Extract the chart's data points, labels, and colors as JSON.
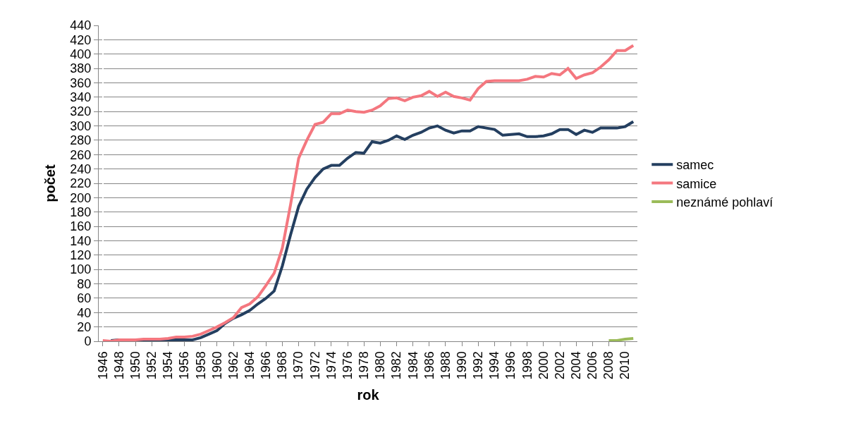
{
  "chart_data": {
    "type": "line",
    "xlabel": "rok",
    "ylabel": "počet",
    "categories": [
      "1946",
      null,
      "1948",
      null,
      "1950",
      null,
      "1952",
      null,
      "1954",
      null,
      "1956",
      null,
      "1958",
      null,
      "1960",
      null,
      "1962",
      null,
      "1964",
      null,
      "1966",
      null,
      "1968",
      null,
      "1970",
      null,
      "1972",
      null,
      "1974",
      null,
      "1976",
      null,
      "1978",
      null,
      "1980",
      null,
      "1982",
      null,
      "1984",
      null,
      "1986",
      null,
      "1988",
      null,
      "1990",
      null,
      "1992",
      null,
      "1994",
      null,
      "1996",
      null,
      "1998",
      null,
      "2000",
      null,
      "2002",
      null,
      "2004",
      null,
      "2006",
      null,
      "2008",
      null,
      "2010",
      null
    ],
    "series": [
      {
        "name": "samec",
        "color": "#243f60",
        "values": [
          null,
          1,
          2,
          2,
          2,
          2,
          2,
          2,
          2,
          2,
          2,
          2,
          5,
          10,
          15,
          25,
          32,
          37,
          43,
          52,
          60,
          70,
          105,
          148,
          188,
          212,
          228,
          240,
          245,
          245,
          255,
          263,
          262,
          278,
          276,
          280,
          286,
          281,
          287,
          291,
          297,
          300,
          294,
          290,
          293,
          293,
          299,
          297,
          295,
          287,
          288,
          289,
          285,
          285,
          286,
          289,
          295,
          295,
          288,
          294,
          291,
          297,
          297,
          297,
          299,
          306
        ]
      },
      {
        "name": "samice",
        "color": "#f4777f",
        "values": [
          1,
          0,
          2,
          2,
          2,
          3,
          3,
          3,
          4,
          6,
          6,
          7,
          10,
          15,
          20,
          26,
          33,
          47,
          52,
          62,
          78,
          95,
          130,
          190,
          255,
          280,
          302,
          305,
          317,
          317,
          322,
          320,
          319,
          322,
          328,
          338,
          339,
          335,
          340,
          342,
          348,
          341,
          347,
          341,
          339,
          336,
          352,
          362,
          363,
          363,
          363,
          363,
          365,
          369,
          368,
          373,
          371,
          380,
          366,
          371,
          374,
          382,
          392,
          405,
          405,
          412
        ]
      },
      {
        "name": "neznámé pohlaví",
        "color": "#9bbb59",
        "values": [
          null,
          null,
          null,
          null,
          null,
          null,
          null,
          null,
          null,
          null,
          null,
          null,
          null,
          null,
          null,
          null,
          null,
          null,
          null,
          null,
          null,
          null,
          null,
          null,
          null,
          null,
          null,
          null,
          null,
          null,
          null,
          null,
          null,
          null,
          null,
          null,
          null,
          null,
          null,
          null,
          null,
          null,
          null,
          null,
          null,
          null,
          null,
          null,
          null,
          null,
          null,
          null,
          null,
          null,
          null,
          null,
          null,
          null,
          null,
          null,
          null,
          null,
          1,
          1,
          3,
          4
        ]
      }
    ],
    "ylim": [
      0,
      440
    ],
    "yticks": [
      0,
      20,
      40,
      60,
      80,
      100,
      120,
      140,
      160,
      180,
      200,
      220,
      240,
      260,
      280,
      300,
      320,
      340,
      360,
      380,
      400,
      420,
      440
    ],
    "grid": "y",
    "legend": "right",
    "marker": "none",
    "line_style": "solid"
  }
}
